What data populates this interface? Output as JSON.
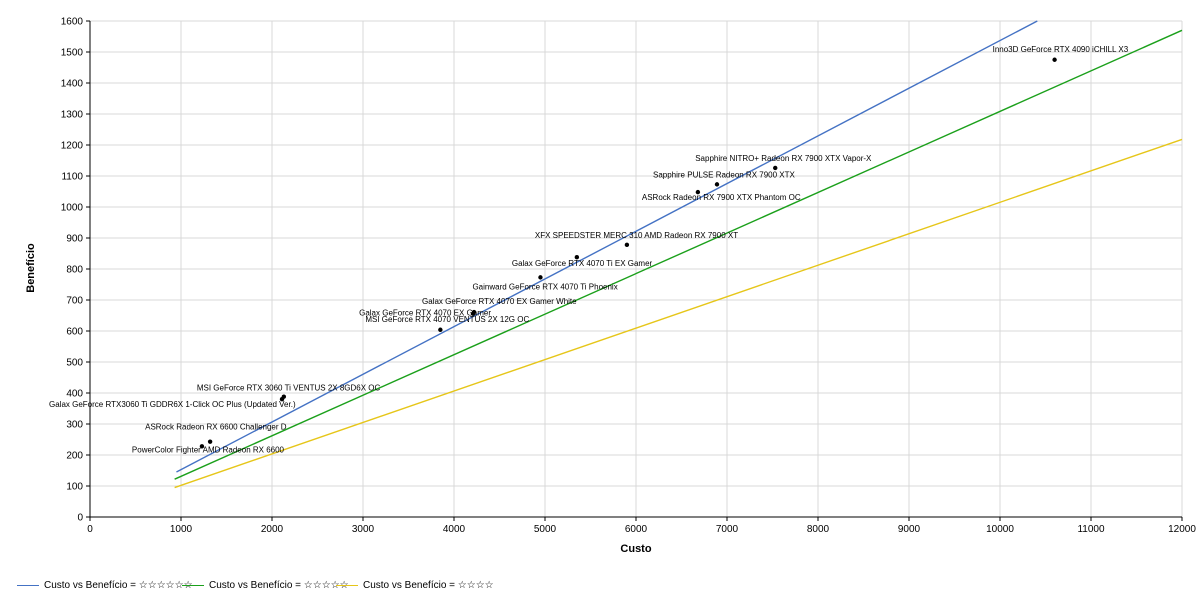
{
  "chart_data": {
    "type": "scatter",
    "xlabel": "Custo",
    "ylabel": "Benefício",
    "xlim": [
      0,
      12000
    ],
    "ylim": [
      0,
      1600
    ],
    "x_ticks": [
      0,
      1000,
      2000,
      3000,
      4000,
      5000,
      6000,
      7000,
      8000,
      9000,
      10000,
      11000,
      12000
    ],
    "y_ticks": [
      0,
      100,
      200,
      300,
      400,
      500,
      600,
      700,
      800,
      900,
      1000,
      1100,
      1200,
      1300,
      1400,
      1500,
      1600
    ],
    "grid": true,
    "points": [
      {
        "label": "PowerColor Fighter AMD Radeon RX 6600",
        "x": 1230,
        "y": 228
      },
      {
        "label": "ASRock Radeon RX 6600 Challenger D",
        "x": 1320,
        "y": 243
      },
      {
        "label": "Galax GeForce RTX3060 Ti GDDR6X 1-Click OC Plus (Updated Ver.)",
        "x": 2110,
        "y": 380
      },
      {
        "label": "MSI GeForce RTX 3060 Ti VENTUS 2X 8GD6X OC",
        "x": 2130,
        "y": 388
      },
      {
        "label": "MSI GeForce RTX 4070 VENTUS 2X 12G OC",
        "x": 3850,
        "y": 604
      },
      {
        "label": "Galax GeForce RTX 4070 EX Gamer",
        "x": 4210,
        "y": 656
      },
      {
        "label": "Galax GeForce RTX 4070 EX Gamer White",
        "x": 4220,
        "y": 661
      },
      {
        "label": "Gainward GeForce RTX 4070 Ti Phoenix",
        "x": 4950,
        "y": 773
      },
      {
        "label": "Galax GeForce RTX 4070 Ti EX Gamer",
        "x": 5350,
        "y": 838
      },
      {
        "label": "XFX SPEEDSTER MERC 310 AMD Radeon RX 7900 XT",
        "x": 5900,
        "y": 878
      },
      {
        "label": "ASRock Radeon RX 7900 XTX Phantom OC",
        "x": 6680,
        "y": 1048
      },
      {
        "label": "Sapphire PULSE Radeon RX 7900 XTX",
        "x": 6890,
        "y": 1073
      },
      {
        "label": "Sapphire NITRO+ Radeon RX 7900 XTX Vapor-X",
        "x": 7530,
        "y": 1126
      },
      {
        "label": "Inno3D GeForce RTX 4090 iCHILL X3",
        "x": 10600,
        "y": 1475
      }
    ],
    "series": [
      {
        "name": "Custo vs Benefício = ☆☆☆☆☆☆",
        "color": "#4472C4",
        "x": [
          950,
          10410
        ],
        "y": [
          145,
          1600
        ]
      },
      {
        "name": "Custo vs Benefício = ☆☆☆☆☆",
        "color": "#1BA01B",
        "x": [
          930,
          12000
        ],
        "y": [
          122,
          1570
        ]
      },
      {
        "name": "Custo vs Benefício = ☆☆☆☆",
        "color": "#E6C619",
        "x": [
          930,
          12000
        ],
        "y": [
          95,
          1218
        ]
      }
    ]
  }
}
